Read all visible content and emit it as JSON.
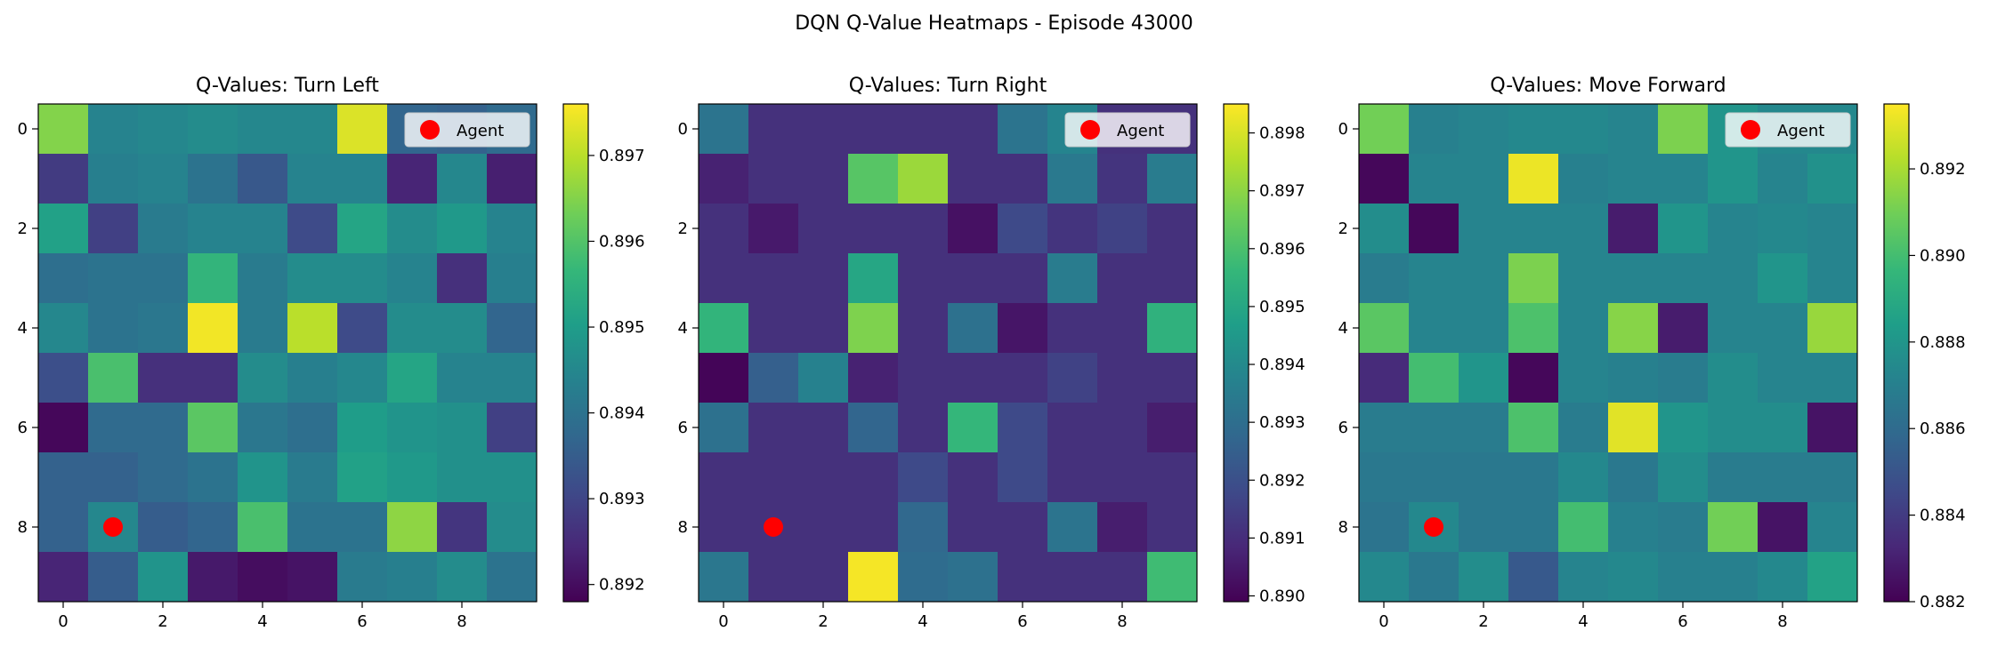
{
  "figure": {
    "suptitle": "DQN Q-Value Heatmaps - Episode 43000"
  },
  "colormap": {
    "name": "viridis",
    "stops": [
      "#440154",
      "#482878",
      "#3e4a89",
      "#31688e",
      "#26828e",
      "#1f9e89",
      "#35b779",
      "#6ece58",
      "#b5de2b",
      "#fde725"
    ]
  },
  "agent": {
    "x": 1,
    "y": 8,
    "color": "#ff0000",
    "legend_label": "Agent"
  },
  "chart_data": [
    {
      "type": "heatmap",
      "title": "Q-Values: Turn Left",
      "x_ticks": [
        0,
        2,
        4,
        6,
        8
      ],
      "y_ticks": [
        0,
        2,
        4,
        6,
        8
      ],
      "vmin": 0.8918,
      "vmax": 0.8976,
      "colorbar_ticks": [
        "0.892",
        "0.893",
        "0.894",
        "0.895",
        "0.896",
        "0.897"
      ],
      "colorbar_values": [
        0.892,
        0.893,
        0.894,
        0.895,
        0.896,
        0.897
      ],
      "legend": {
        "label": "Agent",
        "position": "upper right"
      },
      "grid": [
        [
          0.8965,
          0.8944,
          0.8945,
          0.8946,
          0.8945,
          0.8945,
          0.8973,
          0.8937,
          0.8936,
          0.8938
        ],
        [
          0.8928,
          0.8943,
          0.8944,
          0.894,
          0.8934,
          0.8944,
          0.8944,
          0.8924,
          0.8945,
          0.8923
        ],
        [
          0.8951,
          0.8929,
          0.8942,
          0.8944,
          0.8944,
          0.8931,
          0.8952,
          0.8946,
          0.8949,
          0.8944
        ],
        [
          0.8939,
          0.894,
          0.894,
          0.8956,
          0.8942,
          0.8946,
          0.8946,
          0.8944,
          0.8926,
          0.8943
        ],
        [
          0.8945,
          0.894,
          0.8941,
          0.8975,
          0.8942,
          0.897,
          0.8931,
          0.8946,
          0.8946,
          0.8937
        ],
        [
          0.8932,
          0.8959,
          0.8926,
          0.8926,
          0.8946,
          0.8943,
          0.8945,
          0.8952,
          0.8944,
          0.8944
        ],
        [
          0.8919,
          0.8938,
          0.8938,
          0.8961,
          0.8941,
          0.8939,
          0.895,
          0.8948,
          0.8947,
          0.8929
        ],
        [
          0.8936,
          0.8936,
          0.8938,
          0.894,
          0.8948,
          0.8942,
          0.8951,
          0.8949,
          0.8947,
          0.8947
        ],
        [
          0.8936,
          0.8945,
          0.8935,
          0.8937,
          0.8959,
          0.894,
          0.894,
          0.8966,
          0.8927,
          0.8946
        ],
        [
          0.8924,
          0.8935,
          0.8948,
          0.8922,
          0.892,
          0.8921,
          0.8942,
          0.8943,
          0.8946,
          0.894
        ]
      ]
    },
    {
      "type": "heatmap",
      "title": "Q-Values: Turn Right",
      "x_ticks": [
        0,
        2,
        4,
        6,
        8
      ],
      "y_ticks": [
        0,
        2,
        4,
        6,
        8
      ],
      "vmin": 0.8899,
      "vmax": 0.8985,
      "colorbar_ticks": [
        "0.890",
        "0.891",
        "0.892",
        "0.893",
        "0.894",
        "0.895",
        "0.896",
        "0.897",
        "0.898"
      ],
      "colorbar_values": [
        0.89,
        0.891,
        0.892,
        0.893,
        0.894,
        0.895,
        0.896,
        0.897,
        0.898
      ],
      "legend": {
        "label": "Agent",
        "position": "upper right"
      },
      "grid": [
        [
          0.8932,
          0.8911,
          0.8911,
          0.8911,
          0.8911,
          0.8911,
          0.8932,
          0.8938,
          0.8911,
          0.8911
        ],
        [
          0.8907,
          0.8911,
          0.8911,
          0.8962,
          0.8972,
          0.8911,
          0.8911,
          0.8934,
          0.8912,
          0.8935
        ],
        [
          0.8911,
          0.8905,
          0.8911,
          0.8911,
          0.8911,
          0.8903,
          0.8918,
          0.8912,
          0.8916,
          0.8911
        ],
        [
          0.8911,
          0.8911,
          0.8911,
          0.895,
          0.8911,
          0.8911,
          0.8911,
          0.8935,
          0.8911,
          0.8911
        ],
        [
          0.8955,
          0.8911,
          0.8911,
          0.8968,
          0.8911,
          0.8931,
          0.8904,
          0.8911,
          0.8911,
          0.8954
        ],
        [
          0.89,
          0.8925,
          0.8937,
          0.8907,
          0.8911,
          0.8911,
          0.8911,
          0.8916,
          0.8911,
          0.8911
        ],
        [
          0.8931,
          0.8911,
          0.8911,
          0.8927,
          0.8911,
          0.8956,
          0.8918,
          0.8911,
          0.8911,
          0.8906
        ],
        [
          0.8911,
          0.8911,
          0.8911,
          0.8911,
          0.8918,
          0.8911,
          0.8918,
          0.8911,
          0.8911,
          0.8911
        ],
        [
          0.8911,
          0.8911,
          0.8911,
          0.8911,
          0.8928,
          0.8911,
          0.8911,
          0.8932,
          0.8906,
          0.8911
        ],
        [
          0.8933,
          0.8911,
          0.8911,
          0.8984,
          0.8929,
          0.8931,
          0.8911,
          0.8911,
          0.8911,
          0.8958
        ]
      ]
    },
    {
      "type": "heatmap",
      "title": "Q-Values: Move Forward",
      "x_ticks": [
        0,
        2,
        4,
        6,
        8
      ],
      "y_ticks": [
        0,
        2,
        4,
        6,
        8
      ],
      "vmin": 0.882,
      "vmax": 0.8935,
      "colorbar_ticks": [
        "0.882",
        "0.884",
        "0.886",
        "0.888",
        "0.890",
        "0.892"
      ],
      "colorbar_values": [
        0.882,
        0.884,
        0.886,
        0.888,
        0.89,
        0.892
      ],
      "legend": {
        "label": "Agent",
        "position": "upper right"
      },
      "grid": [
        [
          0.891,
          0.887,
          0.8872,
          0.8874,
          0.8874,
          0.8872,
          0.8912,
          0.888,
          0.8874,
          0.8874
        ],
        [
          0.8822,
          0.8872,
          0.8872,
          0.8932,
          0.887,
          0.8872,
          0.8872,
          0.888,
          0.8872,
          0.8878
        ],
        [
          0.8876,
          0.8822,
          0.8872,
          0.8872,
          0.8872,
          0.8829,
          0.888,
          0.8872,
          0.8874,
          0.8872
        ],
        [
          0.8868,
          0.8872,
          0.8872,
          0.8912,
          0.8872,
          0.8872,
          0.8872,
          0.8872,
          0.888,
          0.8872
        ],
        [
          0.8905,
          0.8872,
          0.8872,
          0.8902,
          0.8872,
          0.8914,
          0.8829,
          0.8872,
          0.8872,
          0.8917
        ],
        [
          0.8834,
          0.89,
          0.888,
          0.8822,
          0.8872,
          0.887,
          0.8868,
          0.8876,
          0.8872,
          0.8872
        ],
        [
          0.8868,
          0.8868,
          0.8868,
          0.8902,
          0.8868,
          0.893,
          0.888,
          0.8876,
          0.8876,
          0.8826
        ],
        [
          0.8866,
          0.8866,
          0.8866,
          0.8866,
          0.8874,
          0.8866,
          0.8876,
          0.8868,
          0.8868,
          0.8868
        ],
        [
          0.8864,
          0.8874,
          0.8866,
          0.8866,
          0.89,
          0.887,
          0.8868,
          0.891,
          0.8826,
          0.8872
        ],
        [
          0.8874,
          0.8866,
          0.8876,
          0.8852,
          0.8872,
          0.8874,
          0.887,
          0.887,
          0.8874,
          0.8886
        ]
      ]
    }
  ]
}
